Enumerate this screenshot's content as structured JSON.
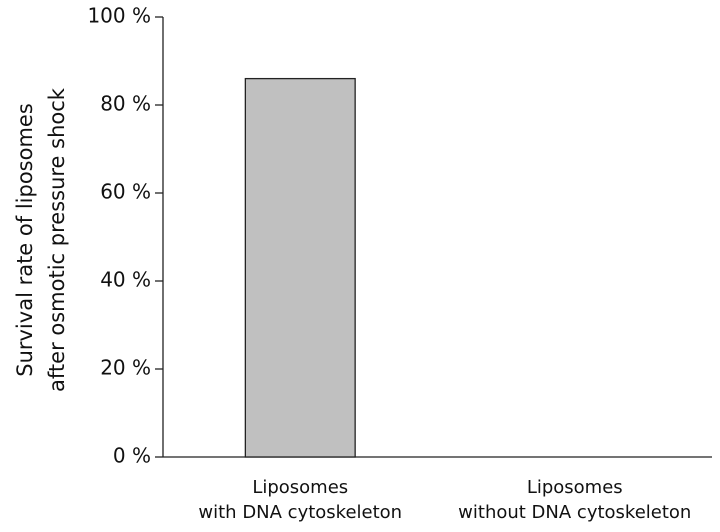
{
  "chart_data": {
    "type": "bar",
    "ylabel": [
      "Survival rate of liposomes",
      "after osmotic pressure shock"
    ],
    "categories": [
      "Liposomes\nwith DNA cytoskeleton",
      "Liposomes\nwithout DNA cytoskeleton"
    ],
    "values": [
      86,
      0
    ],
    "color": "#c0c0c0",
    "ylim": [
      0,
      100
    ],
    "yticks": [
      {
        "value": 0,
        "label": "0 %"
      },
      {
        "value": 20,
        "label": "20 %"
      },
      {
        "value": 40,
        "label": "40 %"
      },
      {
        "value": 60,
        "label": "60 %"
      },
      {
        "value": 80,
        "label": "80 %"
      },
      {
        "value": 100,
        "label": "100 %"
      }
    ],
    "grid": false
  }
}
